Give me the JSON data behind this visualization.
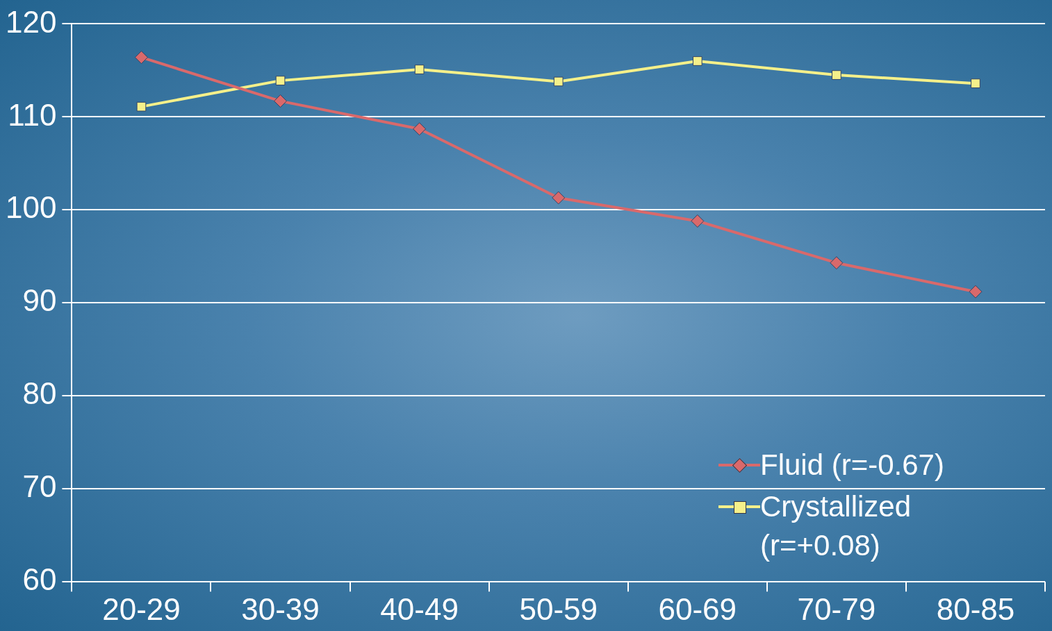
{
  "chart_data": {
    "type": "line",
    "categories": [
      "20-29",
      "30-39",
      "40-49",
      "50-59",
      "60-69",
      "70-79",
      "80-85"
    ],
    "series": [
      {
        "name": "Fluid (r=-0.67)",
        "color": "#d9696b",
        "marker": "diamond",
        "values": [
          116.4,
          111.7,
          108.7,
          101.3,
          98.8,
          94.3,
          91.2
        ]
      },
      {
        "name": "Crystallized (r=+0.08)",
        "color": "#f5f08a",
        "marker": "square",
        "values": [
          111.1,
          113.9,
          115.1,
          113.8,
          116.0,
          114.5,
          113.6
        ]
      }
    ],
    "ylim": [
      60,
      120
    ],
    "yticks": [
      60,
      70,
      80,
      90,
      100,
      110,
      120
    ],
    "grid": "y",
    "legend": "bottom right",
    "line_style": "solid"
  }
}
